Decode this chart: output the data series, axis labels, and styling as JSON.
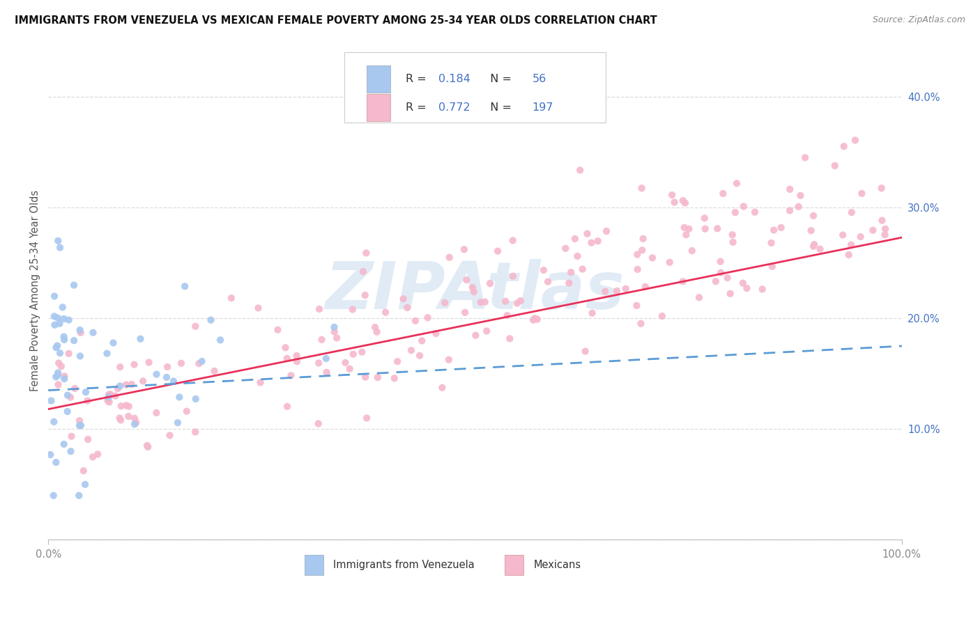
{
  "title": "IMMIGRANTS FROM VENEZUELA VS MEXICAN FEMALE POVERTY AMONG 25-34 YEAR OLDS CORRELATION CHART",
  "source": "Source: ZipAtlas.com",
  "ylabel": "Female Poverty Among 25-34 Year Olds",
  "xlim": [
    0,
    1.0
  ],
  "ylim": [
    0,
    0.45
  ],
  "ytick_positions": [
    0.0,
    0.1,
    0.2,
    0.3,
    0.4
  ],
  "ytick_labels": [
    "",
    "10.0%",
    "20.0%",
    "30.0%",
    "40.0%"
  ],
  "xtick_positions": [
    0.0,
    1.0
  ],
  "xtick_labels": [
    "0.0%",
    "100.0%"
  ],
  "R_venezuela": "0.184",
  "N_venezuela": "56",
  "R_mexican": "0.772",
  "N_mexican": "197",
  "color_venezuela_fill": "#a8c8f0",
  "color_mexican_fill": "#f5b8cc",
  "color_line_venezuela": "#5b9bd5",
  "color_line_mexican": "#e8305a",
  "legend_label_venezuela": "Immigrants from Venezuela",
  "legend_label_mexican": "Mexicans",
  "watermark_text": "ZIPAtlas",
  "watermark_color": "#c5d8ed",
  "background_color": "#ffffff",
  "grid_color": "#dddddd",
  "title_color": "#111111",
  "source_color": "#888888",
  "ylabel_color": "#555555",
  "tick_color": "#888888",
  "legend_text_color": "#333333",
  "legend_value_color": "#4472c4",
  "legend_border_color": "#cccccc"
}
